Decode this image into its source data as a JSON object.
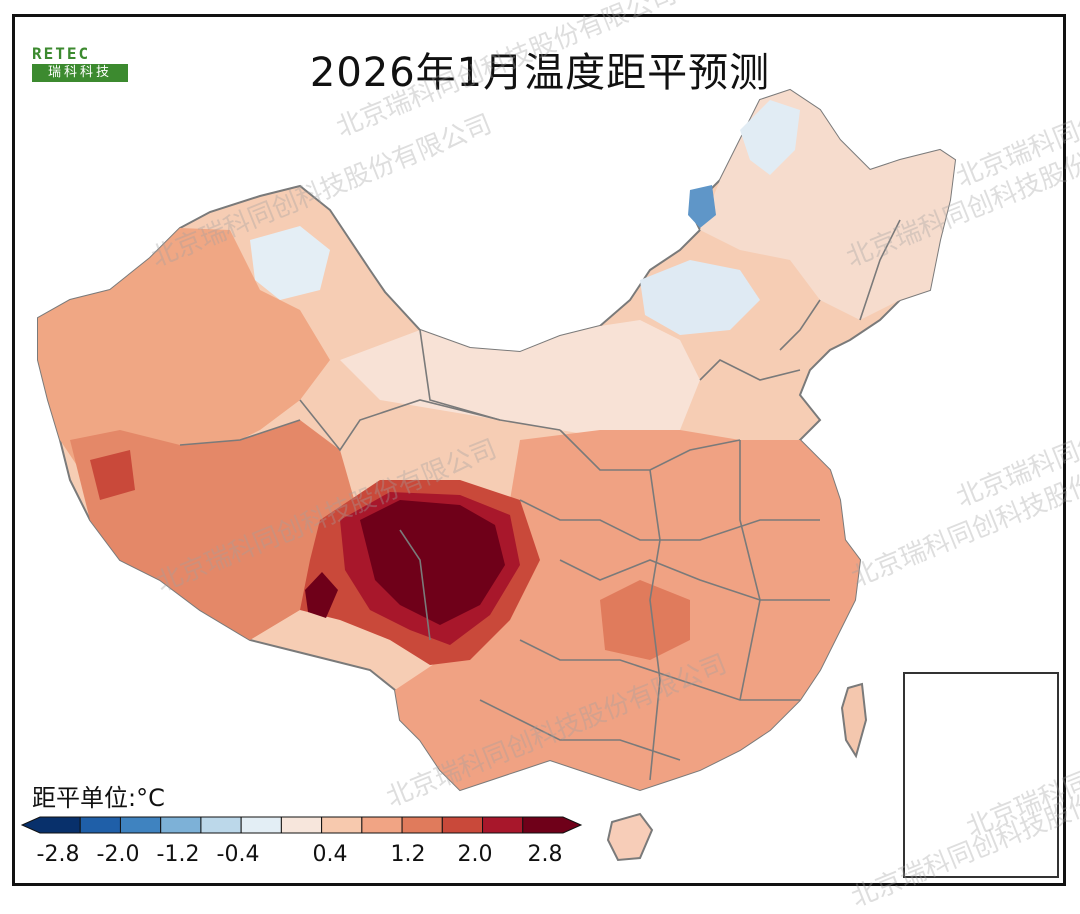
{
  "title": "2026年1月温度距平预测",
  "logo": {
    "word": "RETEC",
    "tagline": "瑞科科技"
  },
  "legend": {
    "unit_label": "距平单位:°C",
    "ticks": [
      "-2.8",
      "-2.0",
      "-1.2",
      "-0.4",
      "0.4",
      "1.2",
      "2.0",
      "2.8"
    ],
    "colors": [
      "#08306b",
      "#1f5fa8",
      "#3f83c0",
      "#7db1d7",
      "#bcd8ea",
      "#e3eef5",
      "#f7e6dc",
      "#f7c9ae",
      "#f1a484",
      "#e07b5c",
      "#c9493a",
      "#a8172b",
      "#6f0019"
    ]
  },
  "watermark": "北京瑞科同创科技股份有限公司"
}
